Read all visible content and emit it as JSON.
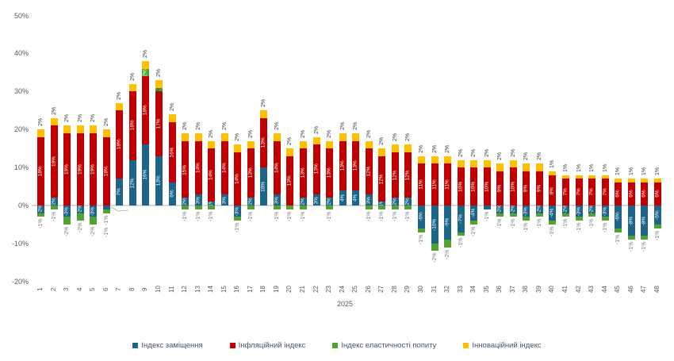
{
  "chart_data": {
    "type": "bar",
    "stacked": true,
    "title": "",
    "grid": false,
    "legend_position": "bottom",
    "x_axis": {
      "label": "2025",
      "categories": [
        1,
        2,
        3,
        4,
        5,
        6,
        7,
        8,
        9,
        10,
        11,
        12,
        13,
        14,
        15,
        16,
        17,
        18,
        19,
        20,
        21,
        22,
        23,
        24,
        25,
        26,
        27,
        28,
        29,
        30,
        31,
        32,
        33,
        34,
        35,
        36,
        37,
        38,
        39,
        40,
        41,
        42,
        43,
        44,
        45,
        46,
        47,
        48
      ]
    },
    "y_axis": {
      "unit": "%",
      "ticks": [
        50,
        40,
        30,
        20,
        10,
        0,
        -10,
        -20
      ],
      "range": [
        -20,
        50
      ]
    },
    "series": [
      {
        "name": "Індекс заміщення",
        "color": "#1c6488",
        "values": [
          -2,
          2,
          -3,
          -2,
          -3,
          -1,
          7,
          12,
          16,
          13,
          6,
          2,
          3,
          1,
          3,
          -3,
          2,
          10,
          3,
          0,
          2,
          3,
          2,
          4,
          4,
          3,
          1,
          2,
          2,
          -6,
          -10,
          -9,
          -7,
          -4,
          -1,
          -2,
          -2,
          -3,
          -2,
          -4,
          -2,
          -3,
          -2,
          -3,
          -6,
          -8,
          -8,
          -5
        ]
      },
      {
        "name": "Інфляційний  індекс",
        "color": "#c00000",
        "values": [
          18,
          19,
          19,
          19,
          19,
          18,
          18,
          18,
          18,
          17,
          16,
          15,
          14,
          14,
          14,
          14,
          13,
          13,
          14,
          13,
          13,
          13,
          13,
          13,
          13,
          12,
          12,
          12,
          12,
          11,
          11,
          11,
          10,
          10,
          10,
          9,
          10,
          9,
          9,
          8,
          7,
          7,
          7,
          7,
          6,
          6,
          6,
          6
        ]
      },
      {
        "name": "Індекс еластичності попиту",
        "color": "#4fa32e",
        "values": [
          -1,
          -1,
          -2,
          -2,
          -2,
          -1,
          0,
          0,
          2,
          1,
          0,
          -1,
          -1,
          -1,
          0,
          -1,
          -1,
          0,
          -1,
          -1,
          -1,
          0,
          -1,
          0,
          0,
          -1,
          -1,
          -1,
          -1,
          -1,
          -2,
          -2,
          -1,
          -1,
          0,
          -1,
          -1,
          -1,
          -1,
          -1,
          -1,
          -1,
          -1,
          -1,
          -1,
          -1,
          -1,
          -1
        ]
      },
      {
        "name": "Інноваційний  індекс",
        "color": "#ffc000",
        "values": [
          2,
          2,
          2,
          2,
          2,
          2,
          2,
          2,
          2,
          2,
          2,
          2,
          2,
          2,
          2,
          2,
          2,
          2,
          2,
          2,
          2,
          2,
          2,
          2,
          2,
          2,
          2,
          2,
          2,
          2,
          2,
          2,
          2,
          2,
          2,
          2,
          2,
          2,
          2,
          1,
          1,
          1,
          1,
          1,
          1,
          1,
          1,
          1
        ]
      }
    ],
    "label_unit": "%"
  }
}
